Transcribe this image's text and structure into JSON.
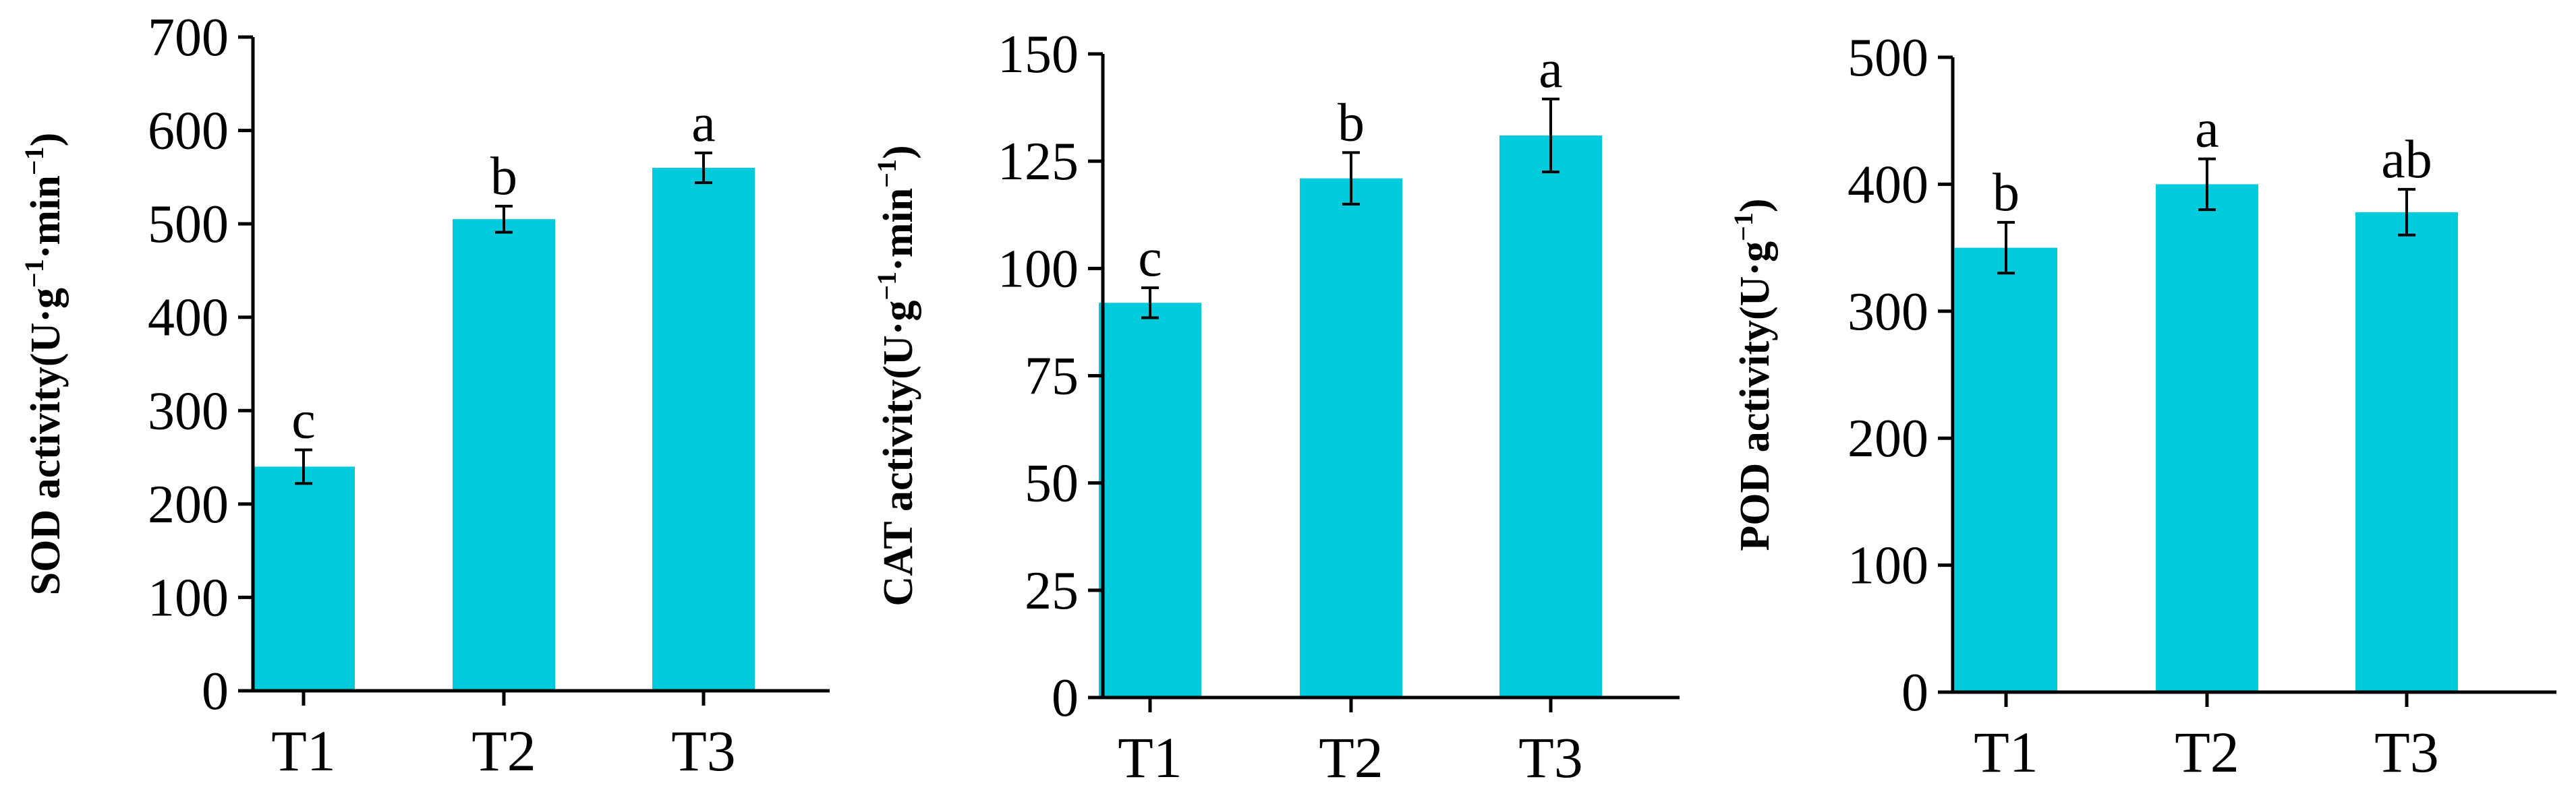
{
  "chart_data": [
    {
      "type": "bar",
      "categories": [
        "T1",
        "T2",
        "T3"
      ],
      "values": [
        240,
        505,
        560
      ],
      "errors": [
        18,
        14,
        16
      ],
      "significance": [
        "c",
        "b",
        "a"
      ],
      "ylabel_main": "SOD activity(U·g",
      "ylabel_mid": "·min",
      "ylabel_close": ")",
      "ylabel_sup": "−1",
      "ylim": [
        0,
        700
      ],
      "yticks": [
        0,
        100,
        200,
        300,
        400,
        500,
        600,
        700
      ],
      "bar_color": "#00CBDD"
    },
    {
      "type": "bar",
      "categories": [
        "T1",
        "T2",
        "T3"
      ],
      "values": [
        92,
        121,
        131
      ],
      "errors": [
        3.5,
        6,
        8.5
      ],
      "significance": [
        "c",
        "b",
        "a"
      ],
      "ylabel_main": "CAT activity(U·g",
      "ylabel_mid": "·min",
      "ylabel_close": ")",
      "ylabel_sup": "−1",
      "ylim": [
        0,
        150
      ],
      "yticks": [
        0,
        25,
        50,
        75,
        100,
        125,
        150
      ],
      "bar_color": "#00CBDD"
    },
    {
      "type": "bar",
      "categories": [
        "T1",
        "T2",
        "T3"
      ],
      "values": [
        350,
        400,
        378
      ],
      "errors": [
        20,
        20,
        18
      ],
      "significance": [
        "b",
        "a",
        "ab"
      ],
      "ylabel_main": "POD activity(U·g",
      "ylabel_mid": "",
      "ylabel_close": ")",
      "ylabel_sup": "−1",
      "ylim": [
        0,
        500
      ],
      "yticks": [
        0,
        100,
        200,
        300,
        400,
        500
      ],
      "bar_color": "#00CBDD"
    }
  ]
}
